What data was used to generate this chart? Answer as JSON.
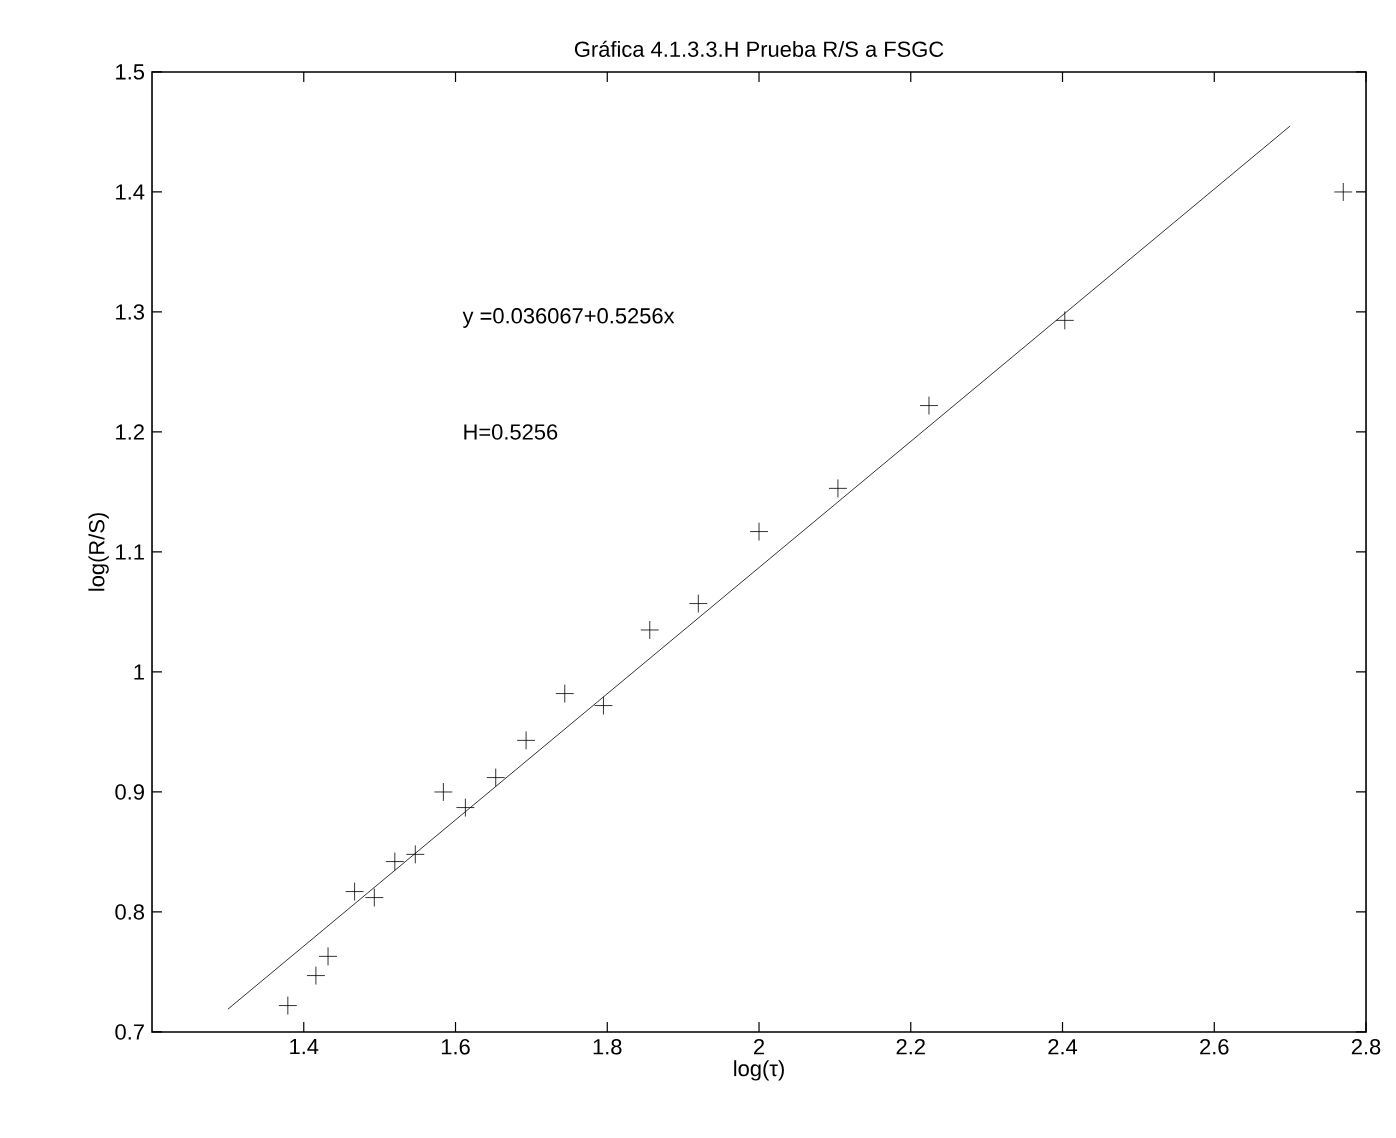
{
  "chart_data": {
    "type": "scatter",
    "title": "Gráfica 4.1.3.3.H Prueba R/S a FSGC",
    "xlabel": "log(τ)",
    "ylabel": "log(R/S)",
    "annotations": [
      "y =0.036067+0.5256x",
      "H=0.5256"
    ],
    "xlim": [
      1.2,
      2.8
    ],
    "ylim": [
      0.7,
      1.5
    ],
    "xticks": [
      1.4,
      1.6,
      1.8,
      2,
      2.2,
      2.4,
      2.6,
      2.8
    ],
    "yticks": [
      0.7,
      0.8,
      0.9,
      1,
      1.1,
      1.2,
      1.3,
      1.4,
      1.5
    ],
    "grid": false,
    "series": [
      {
        "marker": "cross",
        "color": "#000000",
        "x": [
          1.379,
          1.416,
          1.432,
          1.467,
          1.493,
          1.52,
          1.547,
          1.584,
          1.613,
          1.653,
          1.693,
          1.744,
          1.795,
          1.856,
          1.92,
          2.0,
          2.104,
          2.224,
          2.403,
          2.77
        ],
        "values": [
          0.722,
          0.747,
          0.763,
          0.817,
          0.812,
          0.842,
          0.848,
          0.9,
          0.887,
          0.912,
          0.943,
          0.982,
          0.972,
          1.035,
          1.057,
          1.117,
          1.153,
          1.222,
          1.293,
          1.4
        ]
      },
      {
        "type": "line",
        "marker": "none",
        "line_style": "solid",
        "color": "#000000",
        "x": [
          1.3,
          2.7
        ],
        "values": [
          0.719,
          1.455
        ]
      }
    ]
  }
}
